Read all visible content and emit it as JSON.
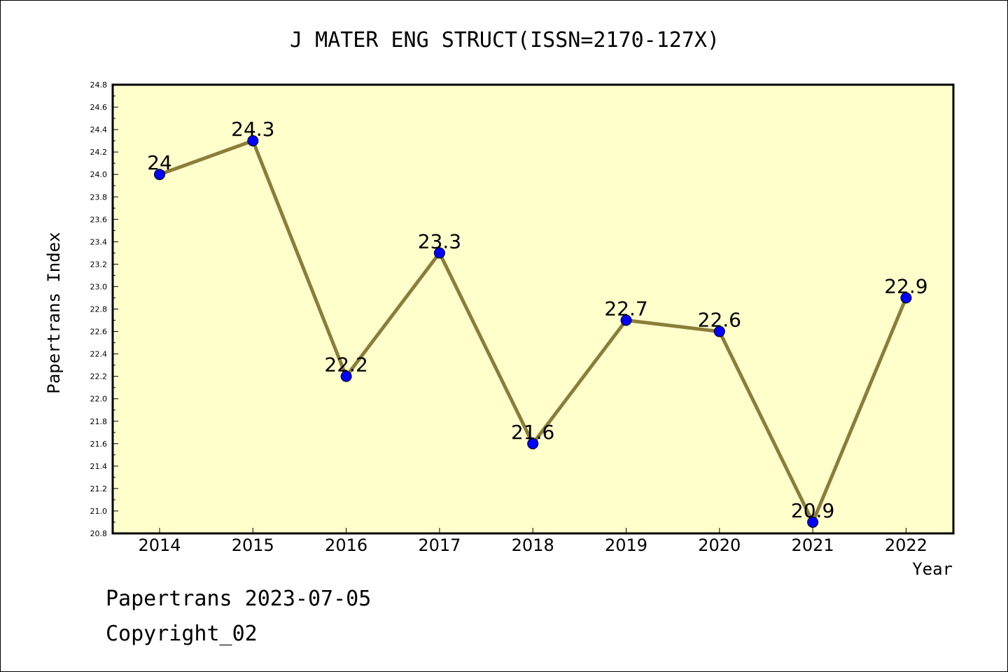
{
  "chart_data": {
    "type": "line",
    "title": "J MATER ENG STRUCT(ISSN=2170-127X)",
    "xlabel": "Year",
    "ylabel": "Papertrans Index",
    "categories": [
      "2014",
      "2015",
      "2016",
      "2017",
      "2018",
      "2019",
      "2020",
      "2021",
      "2022"
    ],
    "series": [
      {
        "values": [
          24,
          24.3,
          22.2,
          23.3,
          21.6,
          22.7,
          22.6,
          20.9,
          22.9
        ],
        "labels": [
          "24",
          "24.3",
          "22.2",
          "23.3",
          "21.6",
          "22.7",
          "22.6",
          "20.9",
          "22.9"
        ]
      }
    ],
    "ylim": [
      20.8,
      24.8
    ],
    "yticks": [
      "20.8",
      "21.0",
      "21.2",
      "21.4",
      "21.6",
      "21.8",
      "22.0",
      "22.2",
      "22.4",
      "22.6",
      "22.8",
      "23.0",
      "23.2",
      "23.4",
      "23.6",
      "23.8",
      "24.0",
      "24.2",
      "24.4",
      "24.6",
      "24.8"
    ],
    "grid": false,
    "colors": {
      "plot_background": "#ffffcc",
      "line": "#8b7d3a",
      "marker": "#0000ff"
    }
  },
  "footer": {
    "date_line": "Papertrans 2023-07-05",
    "copyright_line": "Copyright_02"
  }
}
